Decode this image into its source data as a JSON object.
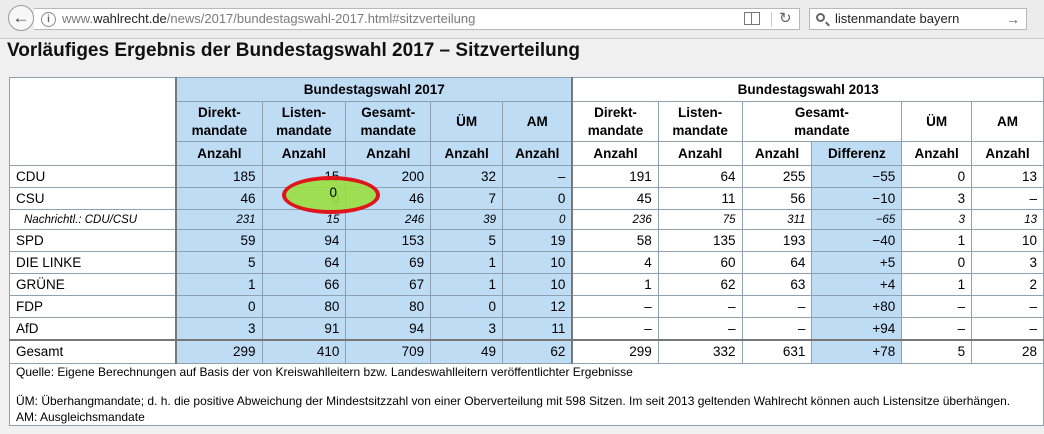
{
  "browser": {
    "url_prefix": "www.",
    "url_domain": "wahlrecht.de",
    "url_path": "/news/2017/bundestagswahl-2017.html#sitzverteilung",
    "search_value": "listenmandate bayern"
  },
  "page": {
    "title": "Vorläufiges Ergebnis der Bundestagswahl 2017 – Sitzverteilung"
  },
  "table": {
    "group_2017": "Bundestagswahl 2017",
    "group_2013": "Bundestagswahl 2013",
    "h_direkt": "Direkt-",
    "h_direkt2": "mandate",
    "h_listen": "Listen-",
    "h_listen2": "mandate",
    "h_gesamt": "Gesamt-",
    "h_gesamt2": "mandate",
    "h_um": "ÜM",
    "h_am": "AM",
    "h_anzahl": "Anzahl",
    "h_differenz": "Differenz",
    "rows": [
      {
        "party": "CDU",
        "d17": "185",
        "l17": "15",
        "g17": "200",
        "um17": "32",
        "am17": "–",
        "d13": "191",
        "l13": "64",
        "g13": "255",
        "diff": "−55",
        "um13": "0",
        "am13": "13"
      },
      {
        "party": "CSU",
        "d17": "46",
        "l17": "0",
        "g17": "46",
        "um17": "7",
        "am17": "0",
        "d13": "45",
        "l13": "11",
        "g13": "56",
        "diff": "−10",
        "um13": "3",
        "am13": "–"
      },
      {
        "party": "Nachrichtl.: CDU/CSU",
        "d17": "231",
        "l17": "15",
        "g17": "246",
        "um17": "39",
        "am17": "0",
        "d13": "236",
        "l13": "75",
        "g13": "311",
        "diff": "−65",
        "um13": "3",
        "am13": "13"
      },
      {
        "party": "SPD",
        "d17": "59",
        "l17": "94",
        "g17": "153",
        "um17": "5",
        "am17": "19",
        "d13": "58",
        "l13": "135",
        "g13": "193",
        "diff": "−40",
        "um13": "1",
        "am13": "10"
      },
      {
        "party": "DIE LINKE",
        "d17": "5",
        "l17": "64",
        "g17": "69",
        "um17": "1",
        "am17": "10",
        "d13": "4",
        "l13": "60",
        "g13": "64",
        "diff": "+5",
        "um13": "0",
        "am13": "3"
      },
      {
        "party": "GRÜNE",
        "d17": "1",
        "l17": "66",
        "g17": "67",
        "um17": "1",
        "am17": "10",
        "d13": "1",
        "l13": "62",
        "g13": "63",
        "diff": "+4",
        "um13": "1",
        "am13": "2"
      },
      {
        "party": "FDP",
        "d17": "0",
        "l17": "80",
        "g17": "80",
        "um17": "0",
        "am17": "12",
        "d13": "–",
        "l13": "–",
        "g13": "–",
        "diff": "+80",
        "um13": "–",
        "am13": "–"
      },
      {
        "party": "AfD",
        "d17": "3",
        "l17": "91",
        "g17": "94",
        "um17": "3",
        "am17": "11",
        "d13": "–",
        "l13": "–",
        "g13": "–",
        "diff": "+94",
        "um13": "–",
        "am13": "–"
      }
    ],
    "total": {
      "party": "Gesamt",
      "d17": "299",
      "l17": "410",
      "g17": "709",
      "um17": "49",
      "am17": "62",
      "d13": "299",
      "l13": "332",
      "g13": "631",
      "diff": "+78",
      "um13": "5",
      "am13": "28"
    },
    "source": "Quelle: Eigene Berechnungen auf Basis der von Kreiswahlleitern bzw. Landeswahlleitern veröffentlichter Ergebnisse",
    "note_um": "ÜM: Überhangmandate; d. h. die positive Abweichung der Mindestsitzzahl von einer Oberverteilung mit 598 Sitzen. Im seit 2013 geltenden Wahlrecht können auch Listensitze überhängen.",
    "note_am": "AM: Ausgleichsmandate"
  },
  "highlight_color": "#e0141b"
}
